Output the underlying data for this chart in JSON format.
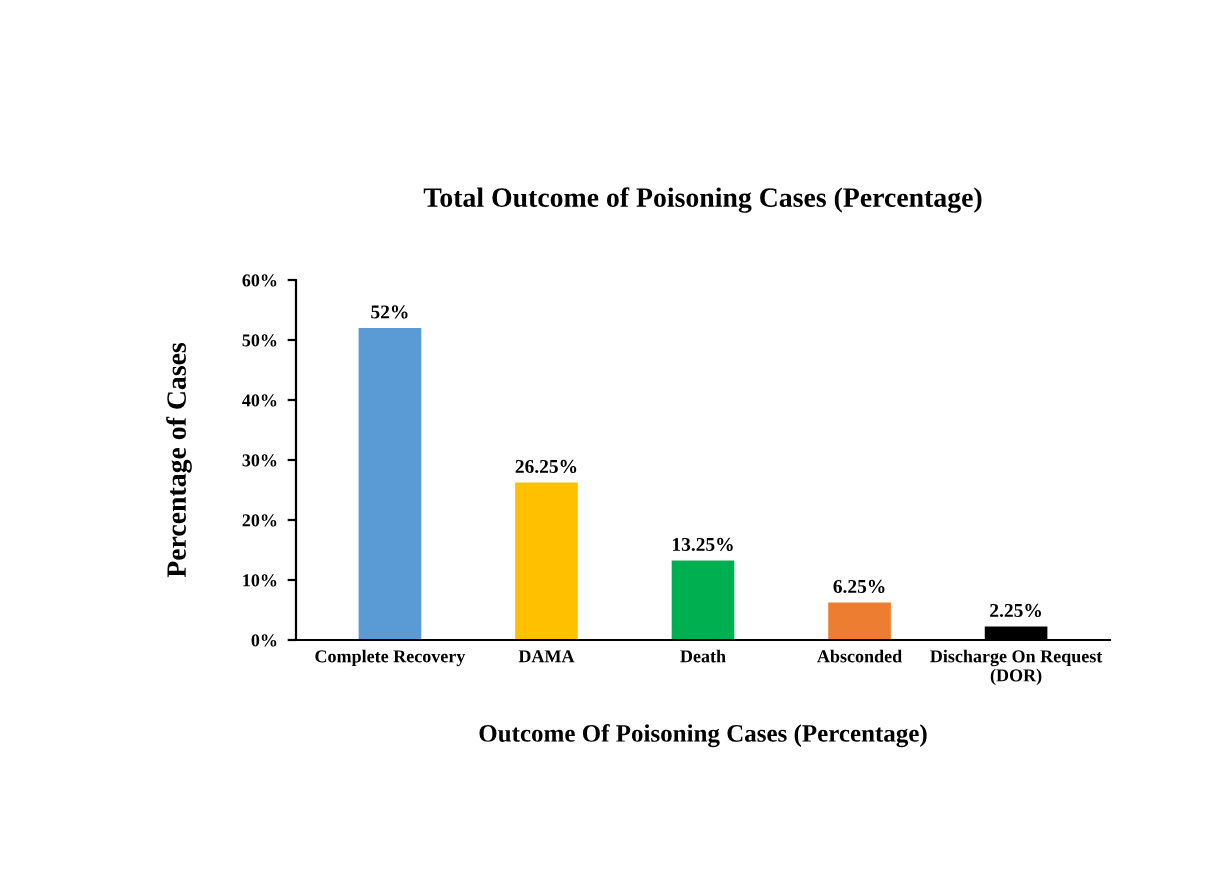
{
  "chart_data": {
    "type": "bar",
    "title": "Total Outcome of Poisoning Cases (Percentage)",
    "xlabel": "Outcome Of Poisoning Cases (Percentage)",
    "ylabel": "Percentage of Cases",
    "categories": [
      "Complete Recovery",
      "DAMA",
      "Death",
      "Absconded",
      "Discharge On Request\n(DOR)"
    ],
    "values": [
      52,
      26.25,
      13.25,
      6.25,
      2.25
    ],
    "colors": [
      "#5b9bd5",
      "#ffc000",
      "#00b050",
      "#ed7d31",
      "#000000"
    ],
    "value_labels": [
      "52%",
      "26.25%",
      "13.25%",
      "6.25%",
      "2.25%"
    ],
    "ylim": [
      0,
      60
    ],
    "yticks": [
      {
        "value": 0,
        "label": "0%"
      },
      {
        "value": 10,
        "label": "10%"
      },
      {
        "value": 20,
        "label": "20%"
      },
      {
        "value": 30,
        "label": "30%"
      },
      {
        "value": 40,
        "label": "40%"
      },
      {
        "value": 50,
        "label": "50%"
      },
      {
        "value": 60,
        "label": "60%"
      }
    ],
    "grid": false,
    "legend": false
  }
}
